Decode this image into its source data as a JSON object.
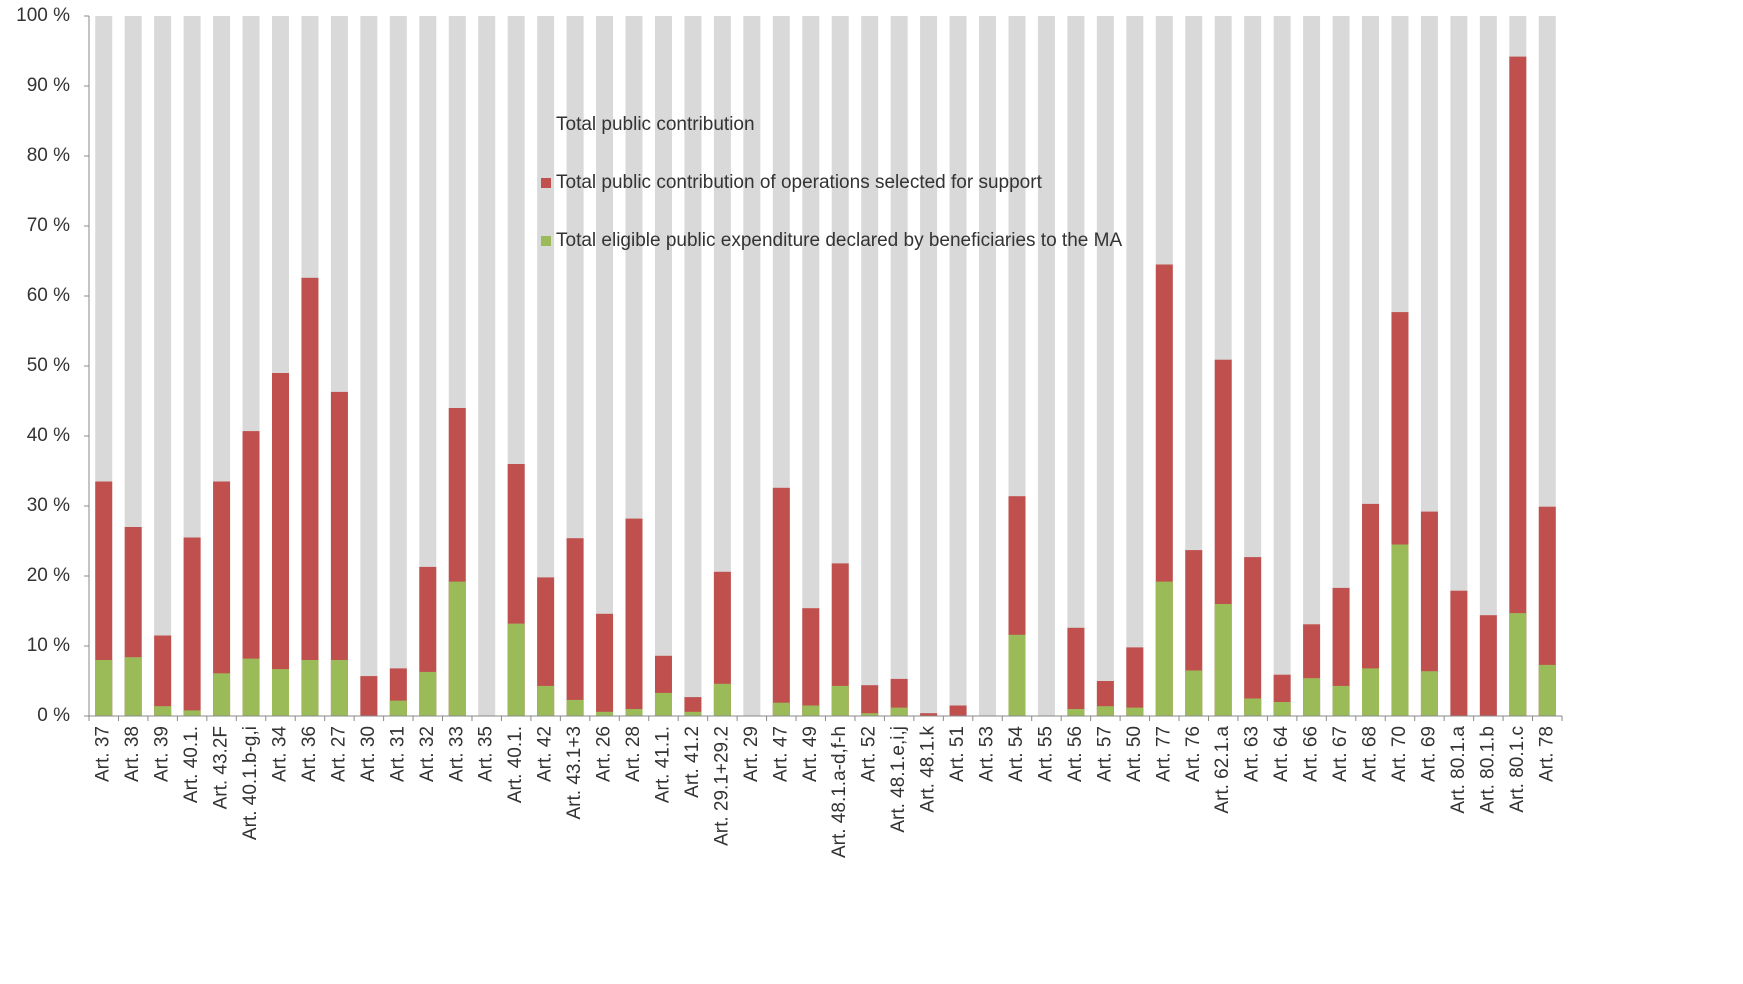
{
  "chart_data": {
    "type": "bar",
    "mode": "overlap",
    "categories": [
      "Art. 37",
      "Art. 38",
      "Art. 39",
      "Art. 40.1.",
      "Art. 43.2F",
      "Art. 40.1.b-g,i",
      "Art. 34",
      "Art. 36",
      "Art. 27",
      "Art. 30",
      "Art. 31",
      "Art. 32",
      "Art. 33",
      "Art. 35",
      "Art. 40.1.",
      "Art. 42",
      "Art. 43.1+3",
      "Art. 26",
      "Art. 28",
      "Art. 41.1.",
      "Art. 41.2",
      "Art. 29.1+29.2",
      "Art. 29",
      "Art. 47",
      "Art. 49",
      "Art. 48.1.a-d,f-h",
      "Art. 52",
      "Art. 48.1.e,i,j",
      "Art. 48.1.k",
      "Art. 51",
      "Art. 53",
      "Art. 54",
      "Art. 55",
      "Art. 56",
      "Art. 57",
      "Art. 50",
      "Art. 77",
      "Art. 76",
      "Art. 62.1.a",
      "Art. 63",
      "Art. 64",
      "Art. 66",
      "Art. 67",
      "Art. 68",
      "Art. 70",
      "Art. 69",
      "Art. 80.1.a",
      "Art. 80.1.b",
      "Art. 80.1.c",
      "Art. 78"
    ],
    "series": [
      {
        "name": "Total public contribution",
        "color": "#d9d9d9",
        "values": [
          100,
          100,
          100,
          100,
          100,
          100,
          100,
          100,
          100,
          100,
          100,
          100,
          100,
          100,
          100,
          100,
          100,
          100,
          100,
          100,
          100,
          100,
          100,
          100,
          100,
          100,
          100,
          100,
          100,
          100,
          100,
          100,
          100,
          100,
          100,
          100,
          100,
          100,
          100,
          100,
          100,
          100,
          100,
          100,
          100,
          100,
          100,
          100,
          100,
          100
        ]
      },
      {
        "name": "Total public contribution of operations selected for support",
        "color": "#c0504d",
        "values": [
          33.5,
          27,
          11.5,
          25.5,
          33.5,
          40.7,
          49,
          62.6,
          46.3,
          5.7,
          6.8,
          21.3,
          44,
          0,
          36,
          19.8,
          25.4,
          14.6,
          28.2,
          8.6,
          2.7,
          20.6,
          0,
          32.6,
          15.4,
          21.8,
          4.4,
          5.3,
          0.4,
          1.5,
          0,
          31.4,
          0,
          12.6,
          5,
          9.8,
          64.5,
          23.7,
          50.9,
          22.7,
          5.9,
          13.1,
          18.3,
          30.3,
          57.7,
          29.2,
          17.9,
          14.4,
          94.2,
          29.9
        ]
      },
      {
        "name": "Total eligible public expenditure declared by beneficiaries to the MA",
        "color": "#9bbb59",
        "values": [
          8,
          8.4,
          1.4,
          0.8,
          6.1,
          8.2,
          6.7,
          8,
          8,
          0,
          2.2,
          6.3,
          19.2,
          0,
          13.2,
          4.3,
          2.3,
          0.6,
          1,
          3.3,
          0.6,
          4.6,
          0,
          1.9,
          1.5,
          4.3,
          0.4,
          1.2,
          0,
          0,
          0,
          11.6,
          0,
          1,
          1.4,
          1.2,
          19.2,
          6.5,
          16,
          2.5,
          2,
          5.4,
          4.3,
          6.8,
          24.5,
          6.4,
          0,
          0,
          14.7,
          7.3
        ]
      }
    ],
    "ylim": [
      0,
      100
    ],
    "yticks": [
      {
        "value": 0,
        "label": "0 %"
      },
      {
        "value": 10,
        "label": "10 %"
      },
      {
        "value": 20,
        "label": "20 %"
      },
      {
        "value": 30,
        "label": "30 %"
      },
      {
        "value": 40,
        "label": "40 %"
      },
      {
        "value": 50,
        "label": "50 %"
      },
      {
        "value": 60,
        "label": "60 %"
      },
      {
        "value": 70,
        "label": "70 %"
      },
      {
        "value": 80,
        "label": "80 %"
      },
      {
        "value": 90,
        "label": "90 %"
      },
      {
        "value": 100,
        "label": "100 %"
      }
    ]
  }
}
